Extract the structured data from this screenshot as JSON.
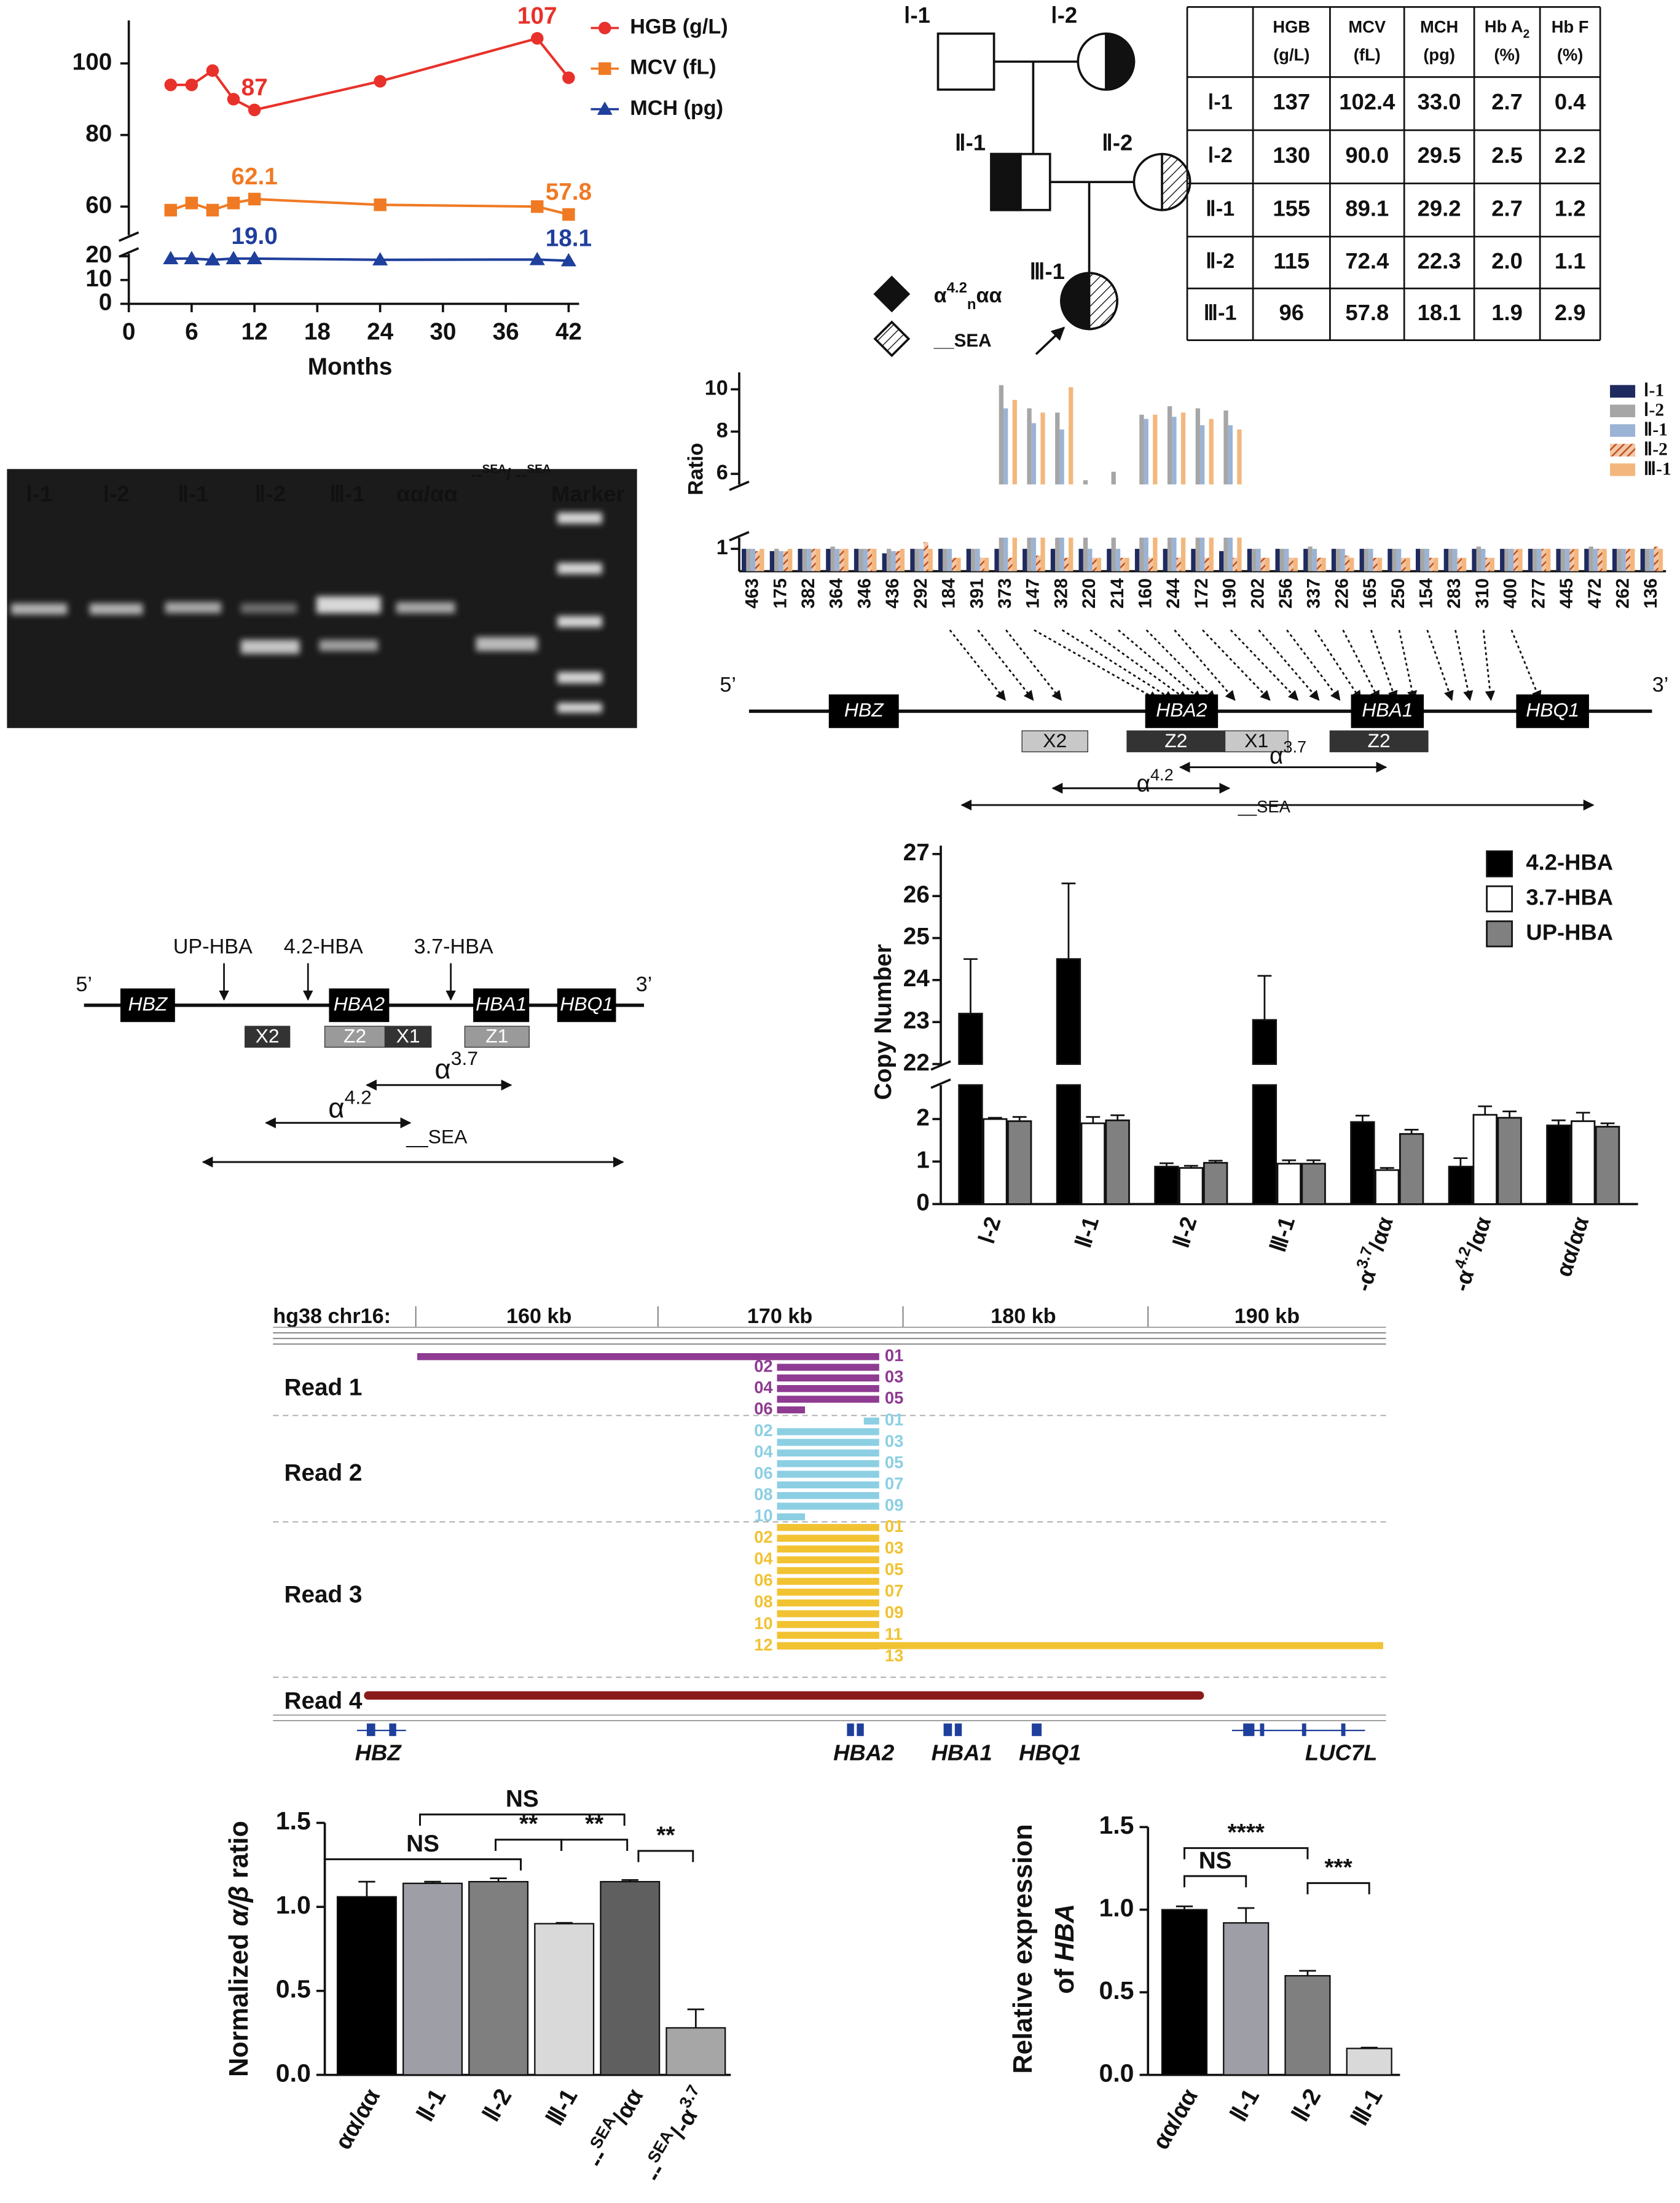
{
  "chart_data": [
    {
      "type": "line",
      "x": [
        4,
        6,
        8,
        10,
        12,
        24,
        39,
        42
      ],
      "xlim": [
        0,
        43
      ],
      "xticks": [
        0,
        6,
        12,
        18,
        24,
        30,
        36,
        42
      ],
      "xlabel": "Months",
      "y_segments": [
        {
          "ylim": [
            0,
            21
          ],
          "yticks": [
            0,
            10,
            20
          ]
        },
        {
          "ylim": [
            52,
            112
          ],
          "yticks": [
            60,
            80,
            100
          ]
        }
      ],
      "series": [
        {
          "name": "HGB (g/L)",
          "color": "#e8312a",
          "marker": "circle",
          "values": [
            94,
            94,
            98,
            90,
            87,
            95,
            107,
            96
          ],
          "value_labels": [
            null,
            null,
            null,
            null,
            "87",
            null,
            "107",
            null
          ]
        },
        {
          "name": "MCV (fL)",
          "color": "#f07a24",
          "marker": "square",
          "values": [
            59,
            61,
            59,
            61,
            62.1,
            60.5,
            60,
            57.8
          ],
          "value_labels": [
            null,
            null,
            null,
            null,
            "62.1",
            null,
            null,
            "57.8"
          ]
        },
        {
          "name": "MCH (pg)",
          "color": "#1f3f9c",
          "marker": "triangle",
          "values": [
            19,
            19,
            18.5,
            19,
            19.0,
            18.5,
            18.6,
            18.1
          ],
          "value_labels": [
            null,
            null,
            null,
            null,
            "19.0",
            null,
            null,
            "18.1"
          ]
        }
      ]
    },
    {
      "type": "bar",
      "ylabel": "Ratio",
      "categories": [
        "463",
        "175",
        "382",
        "364",
        "346",
        "436",
        "292",
        "184",
        "391",
        "373",
        "147",
        "328",
        "220",
        "214",
        "160",
        "244",
        "172",
        "190",
        "202",
        "256",
        "337",
        "226",
        "165",
        "250",
        "154",
        "283",
        "310",
        "400",
        "277",
        "445",
        "472",
        "262",
        "136"
      ],
      "y_segments": [
        {
          "ylim": [
            0,
            1.5
          ],
          "yticks": [
            1
          ]
        },
        {
          "ylim": [
            5.5,
            10.8
          ],
          "yticks": [
            6,
            8,
            10
          ]
        }
      ],
      "series": [
        {
          "name": "Ⅰ-1",
          "color": "#1f2a5e",
          "values": [
            1.0,
            0.9,
            1.0,
            1.0,
            1.0,
            0.8,
            1.0,
            1.0,
            1.0,
            1.0,
            1.0,
            1.0,
            1.0,
            1.0,
            1.0,
            1.0,
            1.0,
            0.9,
            1.0,
            1.0,
            1.0,
            1.0,
            1.0,
            1.0,
            1.0,
            1.0,
            1.0,
            1.0,
            1.0,
            1.0,
            1.0,
            1.0,
            1.0
          ]
        },
        {
          "name": "Ⅰ-2",
          "color": "#a6a6a6",
          "values": [
            1.0,
            1.0,
            1.0,
            1.1,
            1.0,
            1.0,
            1.0,
            1.0,
            1.0,
            10.2,
            9.1,
            8.9,
            5.7,
            6.1,
            8.8,
            9.2,
            9.1,
            9.0,
            1.0,
            1.0,
            1.1,
            1.0,
            1.0,
            1.0,
            1.0,
            1.0,
            1.1,
            1.0,
            1.0,
            1.0,
            1.1,
            1.0,
            1.0
          ]
        },
        {
          "name": "Ⅱ-1",
          "color": "#9bb3d4",
          "values": [
            1.0,
            0.9,
            1.0,
            1.0,
            1.0,
            0.9,
            1.0,
            1.0,
            1.0,
            9.1,
            8.4,
            8.1,
            1.0,
            1.0,
            8.6,
            8.7,
            8.3,
            8.3,
            1.0,
            1.0,
            1.0,
            1.0,
            1.0,
            1.0,
            1.0,
            1.0,
            1.0,
            1.0,
            1.0,
            1.0,
            1.0,
            1.0,
            1.0
          ]
        },
        {
          "name": "Ⅱ-2",
          "color": "#c0501a",
          "pattern": "hatch",
          "values": [
            0.9,
            0.9,
            1.0,
            1.0,
            1.0,
            0.9,
            1.3,
            0.6,
            0.6,
            0.6,
            0.7,
            0.6,
            0.6,
            0.6,
            0.6,
            0.6,
            0.6,
            0.6,
            0.6,
            0.6,
            0.6,
            0.7,
            0.6,
            0.6,
            0.6,
            0.6,
            0.6,
            1.0,
            1.0,
            1.0,
            1.0,
            1.0,
            1.1
          ]
        },
        {
          "name": "Ⅲ-1",
          "color": "#f3b77e",
          "values": [
            1.0,
            1.0,
            1.0,
            1.0,
            1.0,
            1.0,
            1.0,
            0.6,
            0.6,
            9.5,
            8.9,
            10.1,
            0.6,
            0.6,
            8.8,
            8.9,
            8.6,
            8.1,
            0.6,
            0.6,
            0.6,
            0.6,
            0.6,
            0.6,
            0.6,
            0.6,
            0.6,
            1.0,
            1.0,
            1.0,
            1.0,
            1.0,
            1.0
          ]
        }
      ]
    },
    {
      "type": "bar",
      "ylabel": "Copy Number",
      "categories": [
        "Ⅰ-2",
        "Ⅱ-1",
        "Ⅱ-2",
        "Ⅲ-1",
        [
          "-α",
          {
            "sup": "3.7"
          },
          "/αα"
        ],
        [
          "-α",
          {
            "sup": "4.2"
          },
          "/αα"
        ],
        "αα/αα"
      ],
      "y_segments": [
        {
          "ylim": [
            0,
            2.8
          ],
          "yticks": [
            0,
            1,
            2
          ]
        },
        {
          "ylim": [
            22,
            27.2
          ],
          "yticks": [
            22,
            23,
            24,
            25,
            26,
            27
          ]
        }
      ],
      "series": [
        {
          "name": "4.2-HBA",
          "color": "#000000",
          "values": [
            23.2,
            24.5,
            0.88,
            23.05,
            1.93,
            0.88,
            1.85
          ],
          "errors": [
            1.3,
            1.8,
            0.08,
            1.05,
            0.15,
            0.2,
            0.12
          ]
        },
        {
          "name": "3.7-HBA",
          "color": "#ffffff",
          "values": [
            2.0,
            1.9,
            0.85,
            0.95,
            0.8,
            2.1,
            1.95
          ],
          "errors": [
            0.03,
            0.15,
            0.05,
            0.08,
            0.05,
            0.2,
            0.2
          ]
        },
        {
          "name": "UP-HBA",
          "color": "#808080",
          "values": [
            1.95,
            1.97,
            0.97,
            0.95,
            1.65,
            2.03,
            1.82
          ],
          "errors": [
            0.1,
            0.12,
            0.05,
            0.08,
            0.1,
            0.15,
            0.08
          ]
        }
      ]
    },
    {
      "type": "bar",
      "ylabel": [
        "Normalized ",
        {
          "i": "α/β"
        },
        " ratio"
      ],
      "categories": [
        "αα/αα",
        "Ⅱ-1",
        "Ⅱ-2",
        "Ⅲ-1",
        [
          "--",
          {
            "sup": "SEA"
          },
          "/αα"
        ],
        [
          "--",
          {
            "sup": "SEA"
          },
          "/-α",
          {
            "sup": "3.7"
          }
        ]
      ],
      "values": [
        1.06,
        1.14,
        1.15,
        0.9,
        1.15,
        0.28
      ],
      "errors": [
        0.09,
        0.01,
        0.02,
        0.005,
        0.01,
        0.11
      ],
      "colors": [
        "#000000",
        "#9e9ea6",
        "#7f7f7f",
        "#d9d9d9",
        "#5f5f5f",
        "#a6a6a6"
      ],
      "ylim": [
        0,
        1.5
      ],
      "yticks": [
        {
          "value": 0,
          "label": "0.0"
        },
        0.5,
        {
          "value": 1,
          "label": "1.0"
        },
        {
          "value": 1.5,
          "label": "1.5"
        }
      ],
      "annotations": [
        "NS",
        "NS",
        "**",
        "**",
        "**"
      ]
    },
    {
      "type": "bar",
      "ylabel": [
        "Relative expression",
        [
          "of ",
          {
            "i": "HBA"
          }
        ]
      ],
      "categories": [
        "αα/αα",
        "Ⅱ-1",
        "Ⅱ-2",
        "Ⅲ-1"
      ],
      "values": [
        1.0,
        0.92,
        0.6,
        0.16
      ],
      "errors": [
        0.02,
        0.09,
        0.03,
        0.005
      ],
      "colors": [
        "#000000",
        "#9e9ea6",
        "#7f7f7f",
        "#d9d9d9"
      ],
      "ylim": [
        0,
        1.5
      ],
      "yticks": [
        {
          "value": 0,
          "label": "0.0"
        },
        0.5,
        {
          "value": 1,
          "label": "1.0"
        },
        {
          "value": 1.5,
          "label": "1.5"
        }
      ],
      "annotations": [
        "****",
        "NS",
        "***"
      ]
    }
  ],
  "pedigree": {
    "members": [
      "Ⅰ-1",
      "Ⅰ-2",
      "Ⅱ-1",
      "Ⅱ-2",
      "Ⅲ-1"
    ],
    "legend": [
      [
        "α",
        {
          "sup": "4.2"
        },
        {
          "sub": "n"
        },
        "αα"
      ],
      "__SEA"
    ]
  },
  "table": {
    "header": [
      [
        "HGB",
        "(g/L)"
      ],
      [
        "MCV",
        "(fL)"
      ],
      [
        "MCH",
        "(pg)"
      ],
      [
        [
          "Hb A",
          {
            "sub": "2"
          }
        ],
        "(%)"
      ],
      [
        "Hb F",
        "(%)"
      ]
    ],
    "rows": [
      {
        "label": "Ⅰ-1",
        "cells": [
          "137",
          "102.4",
          "33.0",
          "2.7",
          "0.4"
        ]
      },
      {
        "label": "Ⅰ-2",
        "cells": [
          "130",
          "90.0",
          "29.5",
          "2.5",
          "2.2"
        ]
      },
      {
        "label": "Ⅱ-1",
        "cells": [
          "155",
          "89.1",
          "29.2",
          "2.7",
          "1.2"
        ]
      },
      {
        "label": "Ⅱ-2",
        "cells": [
          "115",
          "72.4",
          "22.3",
          "2.0",
          "1.1"
        ]
      },
      {
        "label": "Ⅲ-1",
        "cells": [
          "96",
          "57.8",
          "18.1",
          "1.9",
          "2.9"
        ]
      }
    ]
  },
  "gel": {
    "lanes": [
      "Ⅰ-1",
      "Ⅰ-2",
      "Ⅱ-1",
      "Ⅱ-2",
      "Ⅲ-1",
      "αα/αα",
      [
        "--",
        {
          "sup": "SEA"
        },
        "/ --",
        {
          "sup": "SEA"
        }
      ],
      "Marker"
    ]
  },
  "gene_map": {
    "ends": [
      "5’",
      "3’"
    ],
    "genes": [
      "HBZ",
      "HBA2",
      "HBA1",
      "HBQ1"
    ],
    "regions": [
      "X2",
      "Z2",
      "X1",
      "Z2"
    ],
    "deletions": [
      [
        "α",
        {
          "sup": "3.7"
        }
      ],
      [
        "α",
        {
          "sup": "4.2"
        }
      ],
      "__SEA"
    ]
  },
  "gene_diagram": {
    "probes": [
      "UP-HBA",
      "4.2-HBA",
      "3.7-HBA"
    ],
    "ends": [
      "5’",
      "3’"
    ],
    "genes": [
      "HBZ",
      "HBA2",
      "HBA1",
      "HBQ1"
    ],
    "regions": [
      "X2",
      "Z2",
      "X1",
      "Z1"
    ],
    "deletions": [
      [
        "α",
        {
          "sup": "3.7"
        }
      ],
      [
        "α",
        {
          "sup": "4.2"
        }
      ],
      "__SEA"
    ]
  },
  "reads": {
    "coordinate": "hg38 chr16:",
    "ticks": [
      "160 kb",
      "170 kb",
      "180 kb",
      "190 kb"
    ],
    "groups": [
      {
        "name": "Read 1",
        "ids": [
          "01",
          "02",
          "03",
          "04",
          "05",
          "06"
        ]
      },
      {
        "name": "Read 2",
        "ids": [
          "01",
          "02",
          "03",
          "04",
          "05",
          "06",
          "07",
          "08",
          "09",
          "10"
        ]
      },
      {
        "name": "Read 3",
        "ids": [
          "01",
          "02",
          "03",
          "04",
          "05",
          "06",
          "07",
          "08",
          "09",
          "10",
          "11",
          "12",
          "13"
        ]
      },
      {
        "name": "Read 4"
      }
    ],
    "genes": [
      "HBZ",
      "HBA2",
      "HBA1",
      "HBQ1",
      "LUC7L"
    ]
  }
}
